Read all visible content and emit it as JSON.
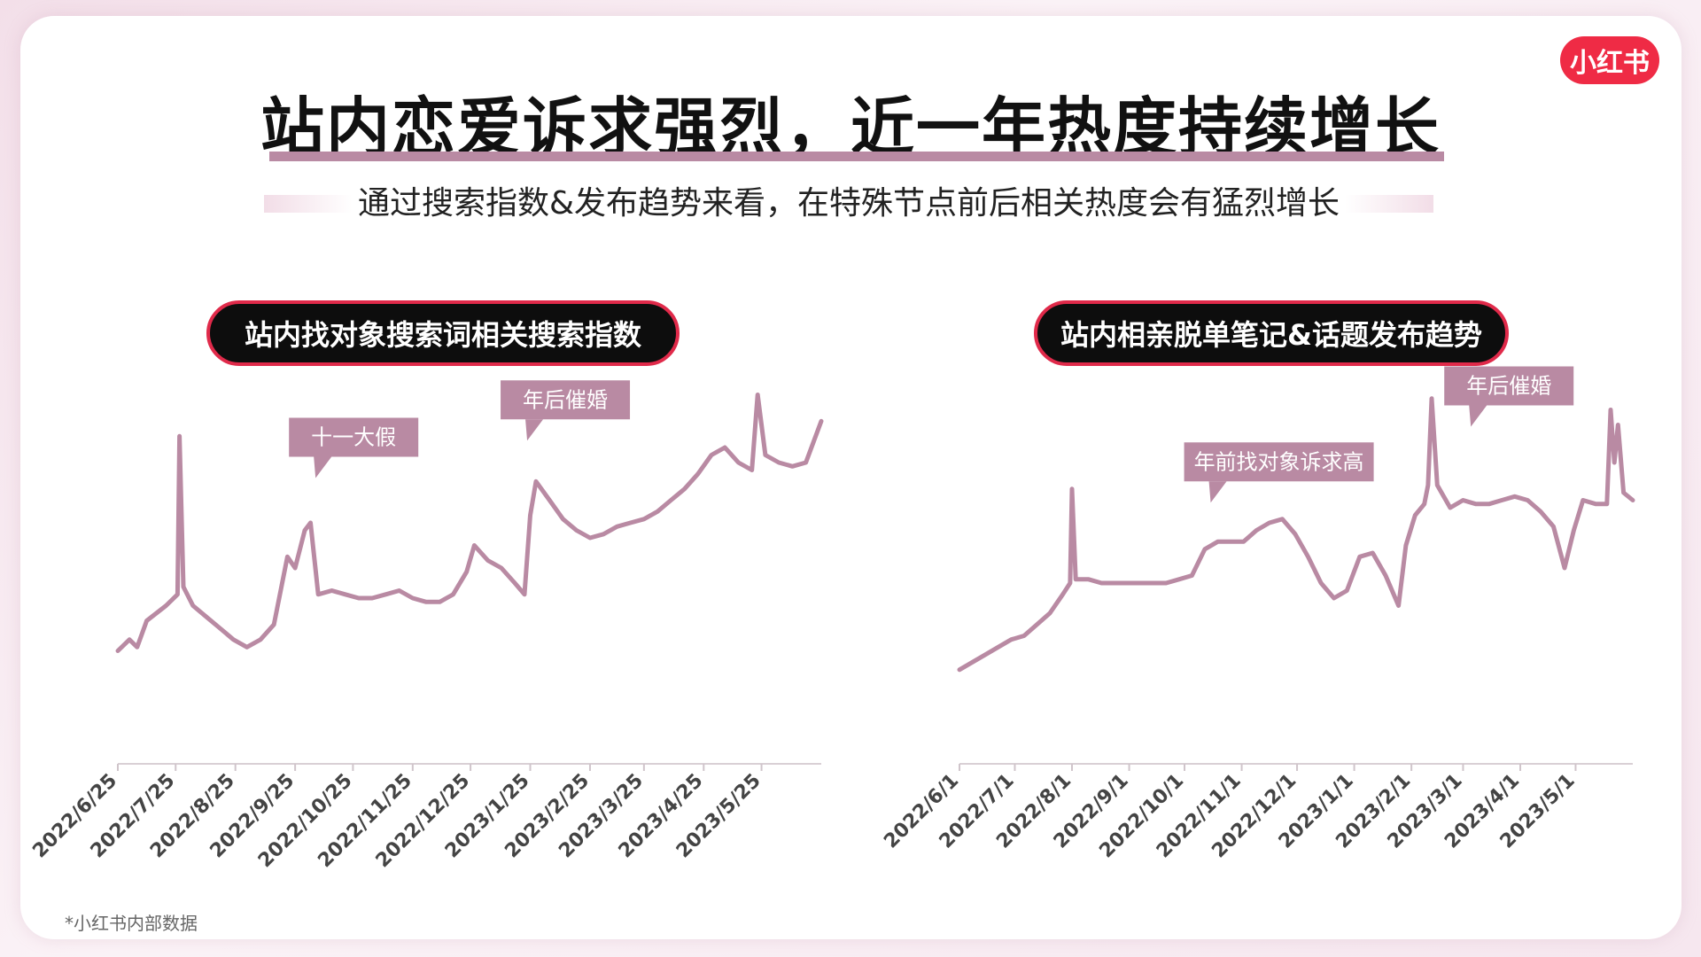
{
  "logo": {
    "text": "小红书",
    "color": "#ef2b45"
  },
  "header": {
    "title": "站内恋爱诉求强烈，近一年热度持续增长",
    "subtitle": "通过搜索指数&发布趋势来看，在特殊节点前后相关热度会有猛烈增长"
  },
  "colors": {
    "line": "#b98aa3",
    "callout": "#b98aa3",
    "panel_title_bg": "#0d0d0d",
    "panel_title_border": "#e02a4a"
  },
  "footnote": "*小红书内部数据",
  "chart_data": [
    {
      "type": "line",
      "title": "站内找对象搜索词相关搜索指数",
      "x_range": [
        "2022/6/25",
        "2023/6/25"
      ],
      "ylim": [
        0,
        100
      ],
      "ticks": [
        "2022/6/25",
        "2022/7/25",
        "2022/8/25",
        "2022/9/25",
        "2022/10/25",
        "2022/11/25",
        "2022/12/25",
        "2023/1/25",
        "2023/2/25",
        "2023/3/25",
        "2023/4/25",
        "2023/5/25"
      ],
      "annotations": [
        {
          "text": "十一大假",
          "x": "2022/10/1"
        },
        {
          "text": "年后催婚",
          "x": "2023/1/28"
        }
      ],
      "series": [
        {
          "points": [
            [
              "2022/6/25",
              30
            ],
            [
              "2022/7/1",
              33
            ],
            [
              "2022/7/5",
              31
            ],
            [
              "2022/7/10",
              38
            ],
            [
              "2022/7/15",
              40
            ],
            [
              "2022/7/20",
              42
            ],
            [
              "2022/7/26",
              45
            ],
            [
              "2022/7/27",
              87
            ],
            [
              "2022/7/29",
              47
            ],
            [
              "2022/8/3",
              42
            ],
            [
              "2022/8/10",
              39
            ],
            [
              "2022/8/17",
              36
            ],
            [
              "2022/8/24",
              33
            ],
            [
              "2022/8/31",
              31
            ],
            [
              "2022/9/7",
              33
            ],
            [
              "2022/9/14",
              37
            ],
            [
              "2022/9/21",
              55
            ],
            [
              "2022/9/25",
              52
            ],
            [
              "2022/9/30",
              62
            ],
            [
              "2022/10/3",
              64
            ],
            [
              "2022/10/7",
              45
            ],
            [
              "2022/10/14",
              46
            ],
            [
              "2022/10/21",
              45
            ],
            [
              "2022/10/28",
              44
            ],
            [
              "2022/11/4",
              44
            ],
            [
              "2022/11/11",
              45
            ],
            [
              "2022/11/18",
              46
            ],
            [
              "2022/11/25",
              44
            ],
            [
              "2022/12/2",
              43
            ],
            [
              "2022/12/9",
              43
            ],
            [
              "2022/12/16",
              45
            ],
            [
              "2022/12/23",
              51
            ],
            [
              "2022/12/27",
              58
            ],
            [
              "2023/1/3",
              54
            ],
            [
              "2023/1/10",
              52
            ],
            [
              "2023/1/17",
              48
            ],
            [
              "2023/1/22",
              45
            ],
            [
              "2023/1/25",
              66
            ],
            [
              "2023/1/28",
              75
            ],
            [
              "2023/2/4",
              70
            ],
            [
              "2023/2/11",
              65
            ],
            [
              "2023/2/18",
              62
            ],
            [
              "2023/2/25",
              60
            ],
            [
              "2023/3/4",
              61
            ],
            [
              "2023/3/11",
              63
            ],
            [
              "2023/3/18",
              64
            ],
            [
              "2023/3/25",
              65
            ],
            [
              "2023/4/1",
              67
            ],
            [
              "2023/4/8",
              70
            ],
            [
              "2023/4/15",
              73
            ],
            [
              "2023/4/22",
              77
            ],
            [
              "2023/4/29",
              82
            ],
            [
              "2023/5/6",
              84
            ],
            [
              "2023/5/13",
              80
            ],
            [
              "2023/5/20",
              78
            ],
            [
              "2023/5/23",
              98
            ],
            [
              "2023/5/27",
              82
            ],
            [
              "2023/6/3",
              80
            ],
            [
              "2023/6/10",
              79
            ],
            [
              "2023/6/17",
              80
            ],
            [
              "2023/6/25",
              91
            ]
          ]
        }
      ]
    },
    {
      "type": "line",
      "title": "站内相亲脱单笔记&话题发布趋势",
      "x_range": [
        "2022/6/1",
        "2023/6/1"
      ],
      "ylim": [
        0,
        100
      ],
      "ticks": [
        "2022/6/1",
        "2022/7/1",
        "2022/8/1",
        "2022/9/1",
        "2022/10/1",
        "2022/11/1",
        "2022/12/1",
        "2023/1/1",
        "2023/2/1",
        "2023/3/1",
        "2023/4/1",
        "2023/5/1"
      ],
      "annotations": [
        {
          "text": "年前找对象诉求高",
          "x": "2022/11/1"
        },
        {
          "text": "年后催婚",
          "x": "2023/2/14"
        }
      ],
      "series": [
        {
          "points": [
            [
              "2022/6/1",
              25
            ],
            [
              "2022/6/8",
              27
            ],
            [
              "2022/6/15",
              29
            ],
            [
              "2022/6/22",
              31
            ],
            [
              "2022/6/29",
              33
            ],
            [
              "2022/7/6",
              34
            ],
            [
              "2022/7/13",
              37
            ],
            [
              "2022/7/20",
              40
            ],
            [
              "2022/7/27",
              45
            ],
            [
              "2022/7/31",
              48
            ],
            [
              "2022/8/1",
              73
            ],
            [
              "2022/8/3",
              49
            ],
            [
              "2022/8/10",
              49
            ],
            [
              "2022/8/17",
              48
            ],
            [
              "2022/8/24",
              48
            ],
            [
              "2022/8/31",
              48
            ],
            [
              "2022/9/7",
              48
            ],
            [
              "2022/9/14",
              48
            ],
            [
              "2022/9/21",
              48
            ],
            [
              "2022/9/28",
              49
            ],
            [
              "2022/10/5",
              50
            ],
            [
              "2022/10/12",
              57
            ],
            [
              "2022/10/19",
              59
            ],
            [
              "2022/10/26",
              59
            ],
            [
              "2022/11/2",
              59
            ],
            [
              "2022/11/9",
              62
            ],
            [
              "2022/11/16",
              64
            ],
            [
              "2022/11/23",
              65
            ],
            [
              "2022/11/30",
              61
            ],
            [
              "2022/12/7",
              55
            ],
            [
              "2022/12/14",
              48
            ],
            [
              "2022/12/21",
              44
            ],
            [
              "2022/12/28",
              46
            ],
            [
              "2023/1/4",
              55
            ],
            [
              "2023/1/11",
              56
            ],
            [
              "2023/1/18",
              50
            ],
            [
              "2023/1/25",
              42
            ],
            [
              "2023/1/29",
              58
            ],
            [
              "2023/2/3",
              66
            ],
            [
              "2023/2/8",
              69
            ],
            [
              "2023/2/10",
              74
            ],
            [
              "2023/2/12",
              97
            ],
            [
              "2023/2/15",
              74
            ],
            [
              "2023/2/22",
              68
            ],
            [
              "2023/3/1",
              70
            ],
            [
              "2023/3/8",
              69
            ],
            [
              "2023/3/15",
              69
            ],
            [
              "2023/3/22",
              70
            ],
            [
              "2023/3/29",
              71
            ],
            [
              "2023/4/5",
              70
            ],
            [
              "2023/4/12",
              67
            ],
            [
              "2023/4/19",
              63
            ],
            [
              "2023/4/25",
              52
            ],
            [
              "2023/4/30",
              62
            ],
            [
              "2023/5/5",
              70
            ],
            [
              "2023/5/12",
              69
            ],
            [
              "2023/5/18",
              69
            ],
            [
              "2023/5/20",
              94
            ],
            [
              "2023/5/22",
              80
            ],
            [
              "2023/5/24",
              90
            ],
            [
              "2023/5/27",
              72
            ],
            [
              "2023/6/1",
              70
            ]
          ]
        }
      ]
    }
  ]
}
